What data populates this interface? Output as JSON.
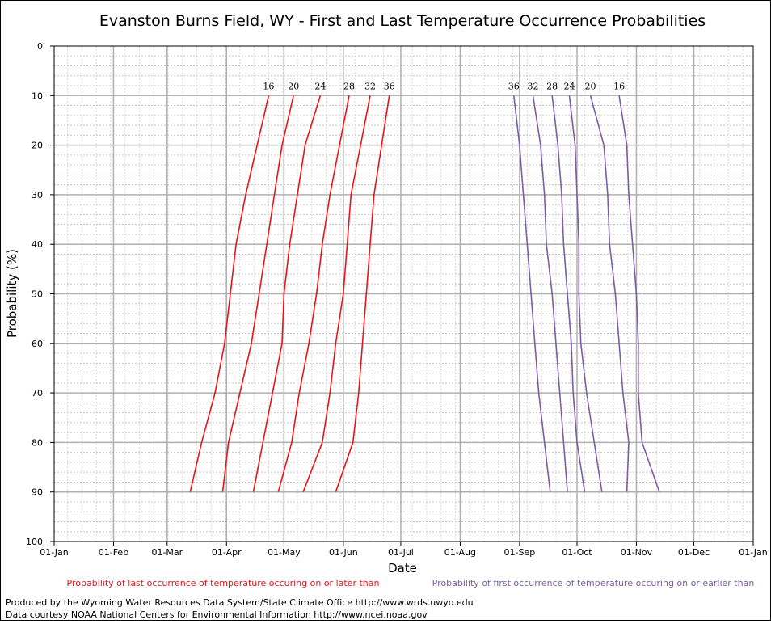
{
  "chart_data": {
    "type": "line",
    "title": "Evanston Burns Field, WY - First and Last Temperature Occurrence Probabilities",
    "xlabel": "Date",
    "ylabel": "Probability (%)",
    "x_tick_labels": [
      "01-Jan",
      "01-Feb",
      "01-Mar",
      "01-Apr",
      "01-May",
      "01-Jun",
      "01-Jul",
      "01-Aug",
      "01-Sep",
      "01-Oct",
      "01-Nov",
      "01-Dec",
      "01-Jan"
    ],
    "y_tick_labels": [
      "0",
      "10",
      "20",
      "30",
      "40",
      "50",
      "60",
      "70",
      "80",
      "90",
      "100"
    ],
    "ylim": [
      0,
      100
    ],
    "y_inverted": true,
    "x_units": "day of year",
    "xlim": [
      1,
      366
    ],
    "grid": true,
    "probabilities": [
      10,
      20,
      30,
      40,
      50,
      60,
      70,
      80,
      90
    ],
    "series": [
      {
        "group": "last",
        "label": "16",
        "color": "#e8141c",
        "doy": [
          113,
          107,
          101,
          96,
          93,
          90,
          85,
          78,
          72
        ]
      },
      {
        "group": "last",
        "label": "20",
        "color": "#e8141c",
        "doy": [
          126,
          120,
          116,
          112,
          108,
          104,
          98,
          92,
          89
        ]
      },
      {
        "group": "last",
        "label": "24",
        "color": "#e8141c",
        "doy": [
          140,
          132,
          128,
          124,
          121,
          120,
          115,
          110,
          105
        ]
      },
      {
        "group": "last",
        "label": "28",
        "color": "#e8141c",
        "doy": [
          155,
          150,
          145,
          141,
          138,
          134,
          129,
          125,
          118
        ]
      },
      {
        "group": "last",
        "label": "32",
        "color": "#e8141c",
        "doy": [
          166,
          161,
          156,
          154,
          152,
          148,
          145,
          141,
          131
        ]
      },
      {
        "group": "last",
        "label": "36",
        "color": "#e8141c",
        "doy": [
          176,
          172,
          168,
          166,
          164,
          162,
          160,
          157,
          148
        ]
      },
      {
        "group": "first",
        "label": "36",
        "color": "#7a5ea6",
        "doy": [
          241,
          244,
          246,
          248,
          250,
          252,
          254,
          257,
          260
        ]
      },
      {
        "group": "first",
        "label": "32",
        "color": "#7a5ea6",
        "doy": [
          251,
          255,
          257,
          258,
          261,
          263,
          265,
          267,
          269
        ]
      },
      {
        "group": "first",
        "label": "28",
        "color": "#7a5ea6",
        "doy": [
          261,
          264,
          266,
          267,
          269,
          271,
          272,
          274,
          278
        ]
      },
      {
        "group": "first",
        "label": "24",
        "color": "#7a5ea6",
        "doy": [
          270,
          273,
          274,
          275,
          275,
          276,
          279,
          283,
          287
        ]
      },
      {
        "group": "first",
        "label": "20",
        "color": "#7a5ea6",
        "doy": [
          281,
          288,
          290,
          291,
          294,
          296,
          298,
          301,
          300
        ]
      },
      {
        "group": "first",
        "label": "16",
        "color": "#7a5ea6",
        "doy": [
          296,
          300,
          301,
          303,
          305,
          306,
          306,
          308,
          317
        ]
      }
    ]
  },
  "legend": {
    "last": "Probability of last occurrence of temperature occuring on or later than",
    "first": "Probability of first occurrence of temperature occuring on or earlier than"
  },
  "credits": {
    "line1": "Produced by the Wyoming Water Resources Data System/State Climate Office http://www.wrds.uwyo.edu",
    "line2": "Data courtesy NOAA National Centers for Environmental Information http://www.ncei.noaa.gov"
  }
}
